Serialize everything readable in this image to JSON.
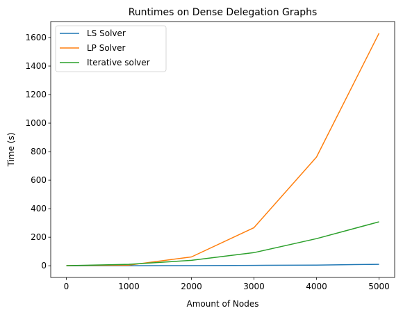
{
  "chart_data": {
    "type": "line",
    "title": "Runtimes on Dense Delegation Graphs",
    "xlabel": "Amount of Nodes",
    "ylabel": "Time (s)",
    "xlim": [
      -250,
      5250
    ],
    "ylim": [
      -82,
      1712
    ],
    "xticks": [
      0,
      1000,
      2000,
      3000,
      4000,
      5000
    ],
    "yticks": [
      0,
      200,
      400,
      600,
      800,
      1000,
      1200,
      1400,
      1600
    ],
    "grid": false,
    "legend_position": "top-left",
    "x": [
      0,
      1000,
      2000,
      3000,
      4000,
      5000
    ],
    "series": [
      {
        "name": "LS Solver",
        "color": "#1f77b4",
        "values": [
          0,
          0.5,
          1,
          3,
          5,
          10
        ]
      },
      {
        "name": "LP Solver",
        "color": "#ff7f0e",
        "values": [
          1,
          5,
          62,
          267,
          762,
          1630
        ]
      },
      {
        "name": "Iterative solver",
        "color": "#2ca02c",
        "values": [
          1,
          10,
          38,
          92,
          190,
          308
        ]
      }
    ]
  }
}
